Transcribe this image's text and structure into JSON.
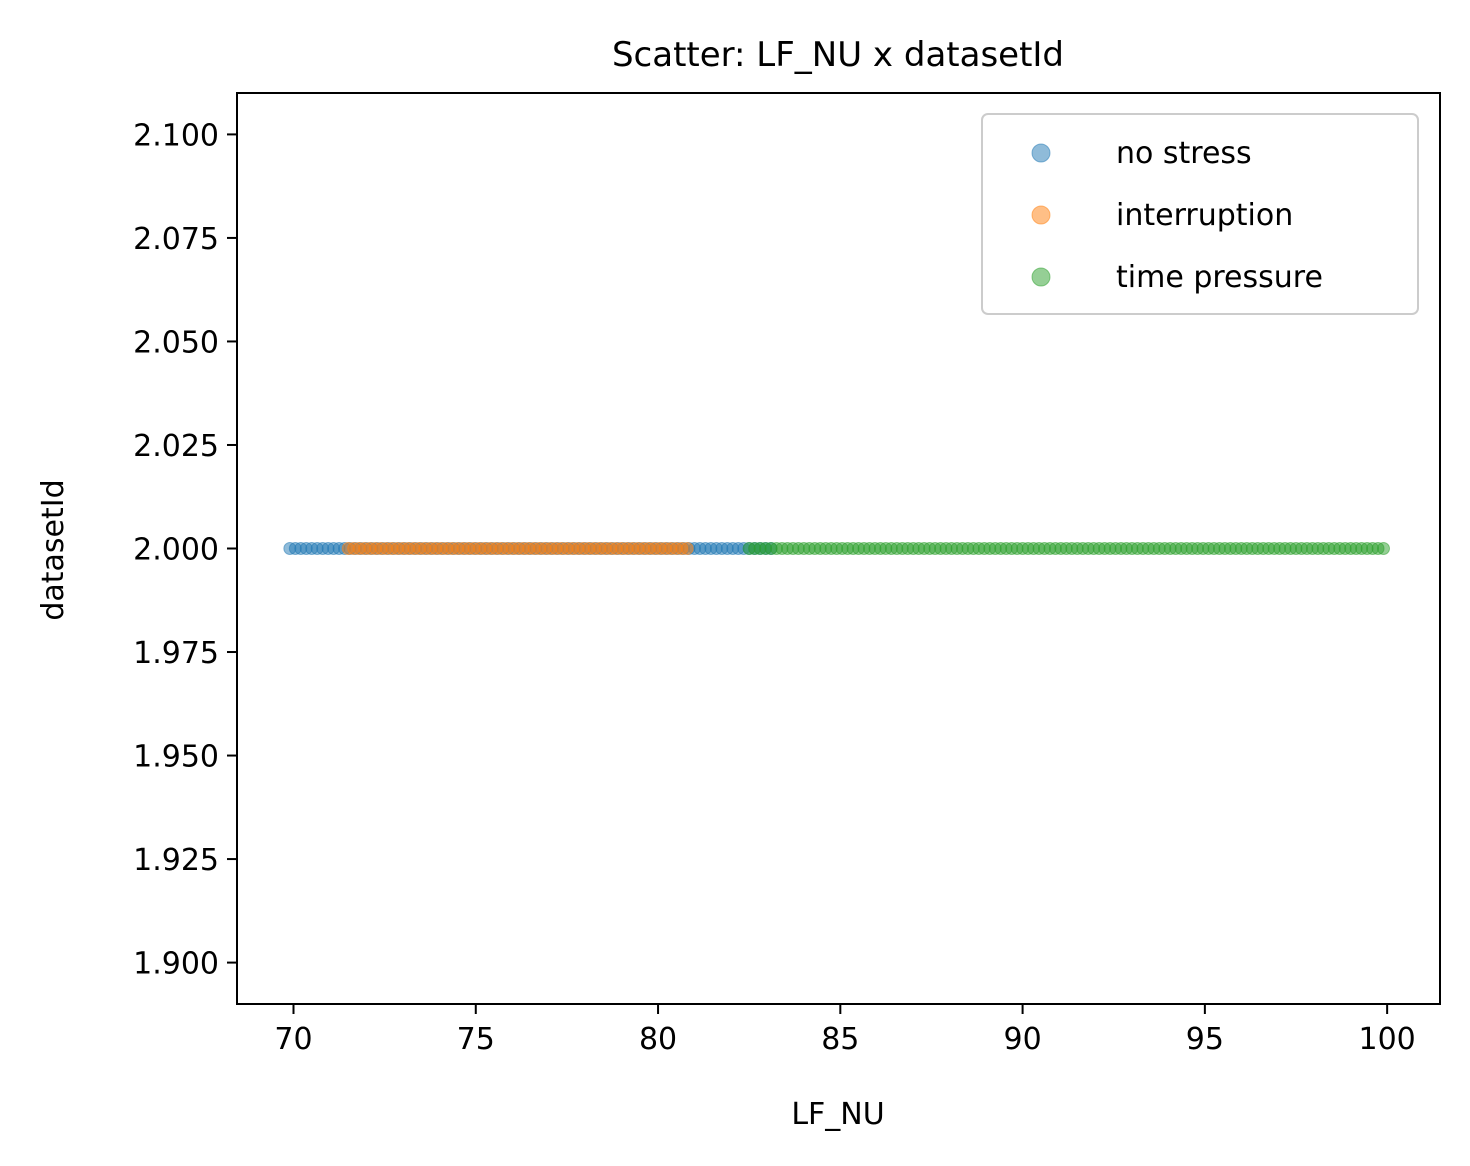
{
  "chart_data": {
    "type": "scatter",
    "title": "Scatter: LF_NU x datasetId",
    "xlabel": "LF_NU",
    "ylabel": "datasetId",
    "xlim": [
      68.45,
      101.45
    ],
    "ylim": [
      1.89,
      2.11
    ],
    "xticks": [
      70,
      75,
      80,
      85,
      90,
      95,
      100
    ],
    "xtick_labels": [
      "70",
      "75",
      "80",
      "85",
      "90",
      "95",
      "100"
    ],
    "yticks": [
      1.9,
      1.925,
      1.95,
      1.975,
      2.0,
      2.025,
      2.05,
      2.075,
      2.1
    ],
    "ytick_labels": [
      "1.900",
      "1.925",
      "1.950",
      "1.975",
      "2.000",
      "2.025",
      "2.050",
      "2.075",
      "2.100"
    ],
    "grid": false,
    "legend_position": "upper-right",
    "series": [
      {
        "name": "no stress",
        "color": "#1f77b4",
        "x_range": [
          69.9,
          83.2
        ],
        "y": 2.0
      },
      {
        "name": "interruption",
        "color": "#ff7f0e",
        "x_range": [
          71.5,
          80.9
        ],
        "y": 2.0
      },
      {
        "name": "time pressure",
        "color": "#2ca02c",
        "x_range": [
          82.5,
          100.0
        ],
        "y": 2.0
      }
    ]
  }
}
